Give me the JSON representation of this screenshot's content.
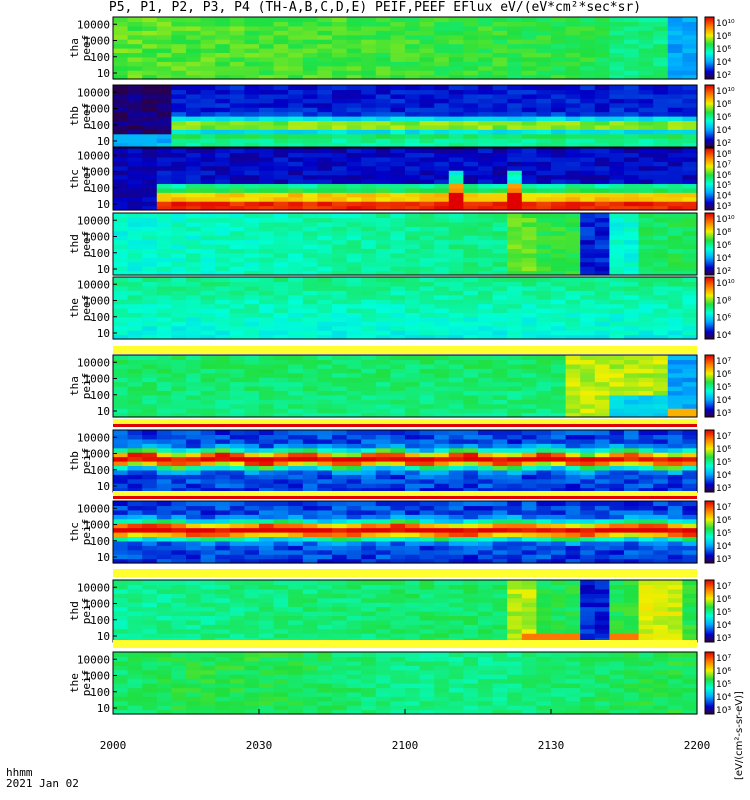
{
  "title": "P5, P1, P2, P3, P4 (TH-A,B,C,D,E) PEIF,PEEF EFlux eV/(eV*cm²*sec*sr)",
  "footer": {
    "time_label": "hhmm",
    "date_label": "2021 Jan 02"
  },
  "colorbar_unit_label": "[eV/(cm²-s-sr-eV)]",
  "chart_data": {
    "type": "heatmap",
    "x_axis": {
      "ticks": [
        "2000",
        "2030",
        "2100",
        "2130",
        "2200"
      ],
      "range": [
        "2000",
        "2200"
      ]
    },
    "y_scale": "log",
    "y_ticks": [
      "10",
      "100",
      "1000",
      "10000"
    ],
    "panels": [
      {
        "label_top": "tha",
        "label_bottom": "peef",
        "cb_ticks": [
          "10¹⁰",
          "10⁸",
          "10⁶",
          "10⁴",
          "10²"
        ],
        "pattern": "peef_flat"
      },
      {
        "label_top": "thb",
        "label_bottom": "peef",
        "cb_ticks": [
          "10¹⁰",
          "10⁸",
          "10⁶",
          "10⁴",
          "10²"
        ],
        "pattern": "peef_band"
      },
      {
        "label_top": "thc",
        "label_bottom": "peef",
        "cb_ticks": [
          "10⁸",
          "10⁷",
          "10⁶",
          "10⁵",
          "10⁴",
          "10³"
        ],
        "pattern": "peef_low"
      },
      {
        "label_top": "thd",
        "label_bottom": "peef",
        "cb_ticks": [
          "10¹⁰",
          "10⁸",
          "10⁶",
          "10⁴",
          "10²"
        ],
        "pattern": "peef_blocks"
      },
      {
        "label_top": "the",
        "label_bottom": "peef",
        "cb_ticks": [
          "10¹⁰",
          "10⁸",
          "10⁶",
          "10⁴"
        ],
        "pattern": "peef_cyan"
      },
      {
        "label_top": "tha",
        "label_bottom": "peif",
        "cb_ticks": [
          "10⁷",
          "10⁶",
          "10⁵",
          "10⁴",
          "10³"
        ],
        "pattern": "peif_green"
      },
      {
        "label_top": "thb",
        "label_bottom": "peif",
        "cb_ticks": [
          "10⁷",
          "10⁶",
          "10⁵",
          "10⁴",
          "10³"
        ],
        "pattern": "peif_band"
      },
      {
        "label_top": "thc",
        "label_bottom": "peif",
        "cb_ticks": [
          "10⁷",
          "10⁶",
          "10⁵",
          "10⁴",
          "10³"
        ],
        "pattern": "peif_band2"
      },
      {
        "label_top": "thd",
        "label_bottom": "peif",
        "cb_ticks": [
          "10⁷",
          "10⁶",
          "10⁵",
          "10⁴",
          "10³"
        ],
        "pattern": "peif_blocks"
      },
      {
        "label_top": "the",
        "label_bottom": "peif",
        "cb_ticks": [
          "10⁷",
          "10⁶",
          "10⁵",
          "10⁴",
          "10³"
        ],
        "pattern": "peif_flat"
      }
    ]
  }
}
